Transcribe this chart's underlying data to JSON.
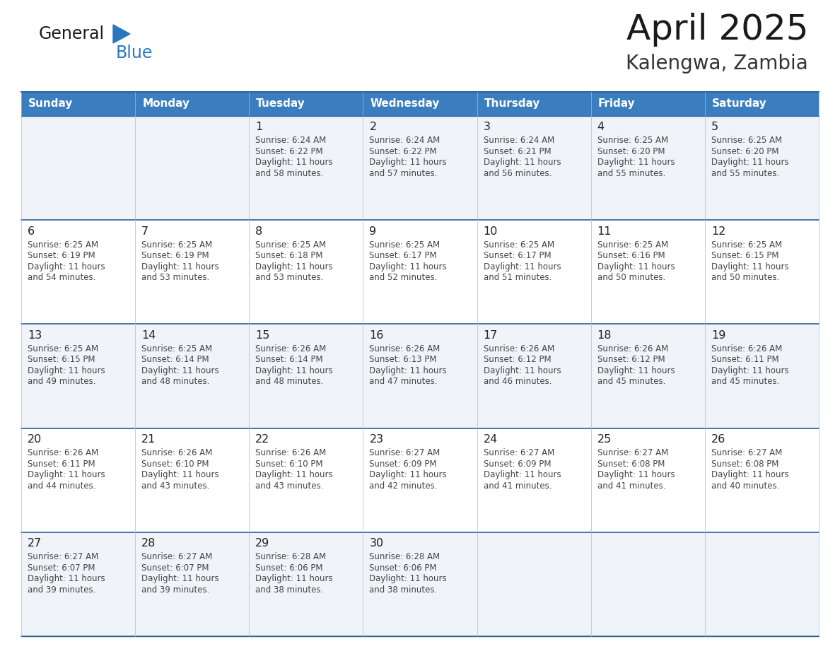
{
  "title": "April 2025",
  "subtitle": "Kalengwa, Zambia",
  "header_bg": "#3A7EBF",
  "header_text": "#FFFFFF",
  "day_names": [
    "Sunday",
    "Monday",
    "Tuesday",
    "Wednesday",
    "Thursday",
    "Friday",
    "Saturday"
  ],
  "row_bg_white": "#FFFFFF",
  "row_bg_gray": "#F0F4F8",
  "grid_line_color": "#AABBCC",
  "header_line_color": "#2A6099",
  "day_num_color": "#222222",
  "info_color": "#444444",
  "title_color": "#1A1A1A",
  "subtitle_color": "#333333",
  "logo_general_color": "#1A1A1A",
  "logo_blue_color": "#2878C0",
  "days": [
    {
      "date": 1,
      "col": 2,
      "row": 0,
      "sunrise": "6:24 AM",
      "sunset": "6:22 PM",
      "dl1": "11 hours",
      "dl2": "and 58 minutes."
    },
    {
      "date": 2,
      "col": 3,
      "row": 0,
      "sunrise": "6:24 AM",
      "sunset": "6:22 PM",
      "dl1": "11 hours",
      "dl2": "and 57 minutes."
    },
    {
      "date": 3,
      "col": 4,
      "row": 0,
      "sunrise": "6:24 AM",
      "sunset": "6:21 PM",
      "dl1": "11 hours",
      "dl2": "and 56 minutes."
    },
    {
      "date": 4,
      "col": 5,
      "row": 0,
      "sunrise": "6:25 AM",
      "sunset": "6:20 PM",
      "dl1": "11 hours",
      "dl2": "and 55 minutes."
    },
    {
      "date": 5,
      "col": 6,
      "row": 0,
      "sunrise": "6:25 AM",
      "sunset": "6:20 PM",
      "dl1": "11 hours",
      "dl2": "and 55 minutes."
    },
    {
      "date": 6,
      "col": 0,
      "row": 1,
      "sunrise": "6:25 AM",
      "sunset": "6:19 PM",
      "dl1": "11 hours",
      "dl2": "and 54 minutes."
    },
    {
      "date": 7,
      "col": 1,
      "row": 1,
      "sunrise": "6:25 AM",
      "sunset": "6:19 PM",
      "dl1": "11 hours",
      "dl2": "and 53 minutes."
    },
    {
      "date": 8,
      "col": 2,
      "row": 1,
      "sunrise": "6:25 AM",
      "sunset": "6:18 PM",
      "dl1": "11 hours",
      "dl2": "and 53 minutes."
    },
    {
      "date": 9,
      "col": 3,
      "row": 1,
      "sunrise": "6:25 AM",
      "sunset": "6:17 PM",
      "dl1": "11 hours",
      "dl2": "and 52 minutes."
    },
    {
      "date": 10,
      "col": 4,
      "row": 1,
      "sunrise": "6:25 AM",
      "sunset": "6:17 PM",
      "dl1": "11 hours",
      "dl2": "and 51 minutes."
    },
    {
      "date": 11,
      "col": 5,
      "row": 1,
      "sunrise": "6:25 AM",
      "sunset": "6:16 PM",
      "dl1": "11 hours",
      "dl2": "and 50 minutes."
    },
    {
      "date": 12,
      "col": 6,
      "row": 1,
      "sunrise": "6:25 AM",
      "sunset": "6:15 PM",
      "dl1": "11 hours",
      "dl2": "and 50 minutes."
    },
    {
      "date": 13,
      "col": 0,
      "row": 2,
      "sunrise": "6:25 AM",
      "sunset": "6:15 PM",
      "dl1": "11 hours",
      "dl2": "and 49 minutes."
    },
    {
      "date": 14,
      "col": 1,
      "row": 2,
      "sunrise": "6:25 AM",
      "sunset": "6:14 PM",
      "dl1": "11 hours",
      "dl2": "and 48 minutes."
    },
    {
      "date": 15,
      "col": 2,
      "row": 2,
      "sunrise": "6:26 AM",
      "sunset": "6:14 PM",
      "dl1": "11 hours",
      "dl2": "and 48 minutes."
    },
    {
      "date": 16,
      "col": 3,
      "row": 2,
      "sunrise": "6:26 AM",
      "sunset": "6:13 PM",
      "dl1": "11 hours",
      "dl2": "and 47 minutes."
    },
    {
      "date": 17,
      "col": 4,
      "row": 2,
      "sunrise": "6:26 AM",
      "sunset": "6:12 PM",
      "dl1": "11 hours",
      "dl2": "and 46 minutes."
    },
    {
      "date": 18,
      "col": 5,
      "row": 2,
      "sunrise": "6:26 AM",
      "sunset": "6:12 PM",
      "dl1": "11 hours",
      "dl2": "and 45 minutes."
    },
    {
      "date": 19,
      "col": 6,
      "row": 2,
      "sunrise": "6:26 AM",
      "sunset": "6:11 PM",
      "dl1": "11 hours",
      "dl2": "and 45 minutes."
    },
    {
      "date": 20,
      "col": 0,
      "row": 3,
      "sunrise": "6:26 AM",
      "sunset": "6:11 PM",
      "dl1": "11 hours",
      "dl2": "and 44 minutes."
    },
    {
      "date": 21,
      "col": 1,
      "row": 3,
      "sunrise": "6:26 AM",
      "sunset": "6:10 PM",
      "dl1": "11 hours",
      "dl2": "and 43 minutes."
    },
    {
      "date": 22,
      "col": 2,
      "row": 3,
      "sunrise": "6:26 AM",
      "sunset": "6:10 PM",
      "dl1": "11 hours",
      "dl2": "and 43 minutes."
    },
    {
      "date": 23,
      "col": 3,
      "row": 3,
      "sunrise": "6:27 AM",
      "sunset": "6:09 PM",
      "dl1": "11 hours",
      "dl2": "and 42 minutes."
    },
    {
      "date": 24,
      "col": 4,
      "row": 3,
      "sunrise": "6:27 AM",
      "sunset": "6:09 PM",
      "dl1": "11 hours",
      "dl2": "and 41 minutes."
    },
    {
      "date": 25,
      "col": 5,
      "row": 3,
      "sunrise": "6:27 AM",
      "sunset": "6:08 PM",
      "dl1": "11 hours",
      "dl2": "and 41 minutes."
    },
    {
      "date": 26,
      "col": 6,
      "row": 3,
      "sunrise": "6:27 AM",
      "sunset": "6:08 PM",
      "dl1": "11 hours",
      "dl2": "and 40 minutes."
    },
    {
      "date": 27,
      "col": 0,
      "row": 4,
      "sunrise": "6:27 AM",
      "sunset": "6:07 PM",
      "dl1": "11 hours",
      "dl2": "and 39 minutes."
    },
    {
      "date": 28,
      "col": 1,
      "row": 4,
      "sunrise": "6:27 AM",
      "sunset": "6:07 PM",
      "dl1": "11 hours",
      "dl2": "and 39 minutes."
    },
    {
      "date": 29,
      "col": 2,
      "row": 4,
      "sunrise": "6:28 AM",
      "sunset": "6:06 PM",
      "dl1": "11 hours",
      "dl2": "and 38 minutes."
    },
    {
      "date": 30,
      "col": 3,
      "row": 4,
      "sunrise": "6:28 AM",
      "sunset": "6:06 PM",
      "dl1": "11 hours",
      "dl2": "and 38 minutes."
    }
  ]
}
